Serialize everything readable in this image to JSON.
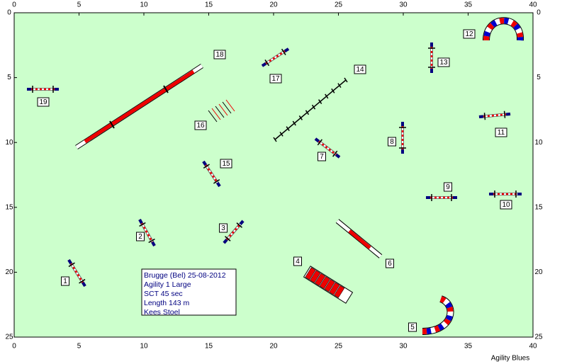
{
  "axes": {
    "xlim": [
      0,
      40
    ],
    "ylim": [
      0,
      25
    ],
    "xticks": [
      0,
      5,
      10,
      15,
      20,
      25,
      30,
      35,
      40
    ],
    "yticks": [
      0,
      5,
      10,
      15,
      20,
      25
    ]
  },
  "obstacles": [
    {
      "label": "1"
    },
    {
      "label": "2"
    },
    {
      "label": "3"
    },
    {
      "label": "4"
    },
    {
      "label": "5"
    },
    {
      "label": "6"
    },
    {
      "label": "7"
    },
    {
      "label": "8"
    },
    {
      "label": "9"
    },
    {
      "label": "10"
    },
    {
      "label": "11"
    },
    {
      "label": "12"
    },
    {
      "label": "13"
    },
    {
      "label": "14"
    },
    {
      "label": "15"
    },
    {
      "label": "16"
    },
    {
      "label": "17"
    },
    {
      "label": "18"
    },
    {
      "label": "19"
    }
  ],
  "info": [
    "Brugge (Bel) 25-08-2012",
    "Agility 1 Large",
    "SCT 45 sec",
    "Length 143 m",
    "Kees Stoel"
  ],
  "footer": "Agility Blues"
}
